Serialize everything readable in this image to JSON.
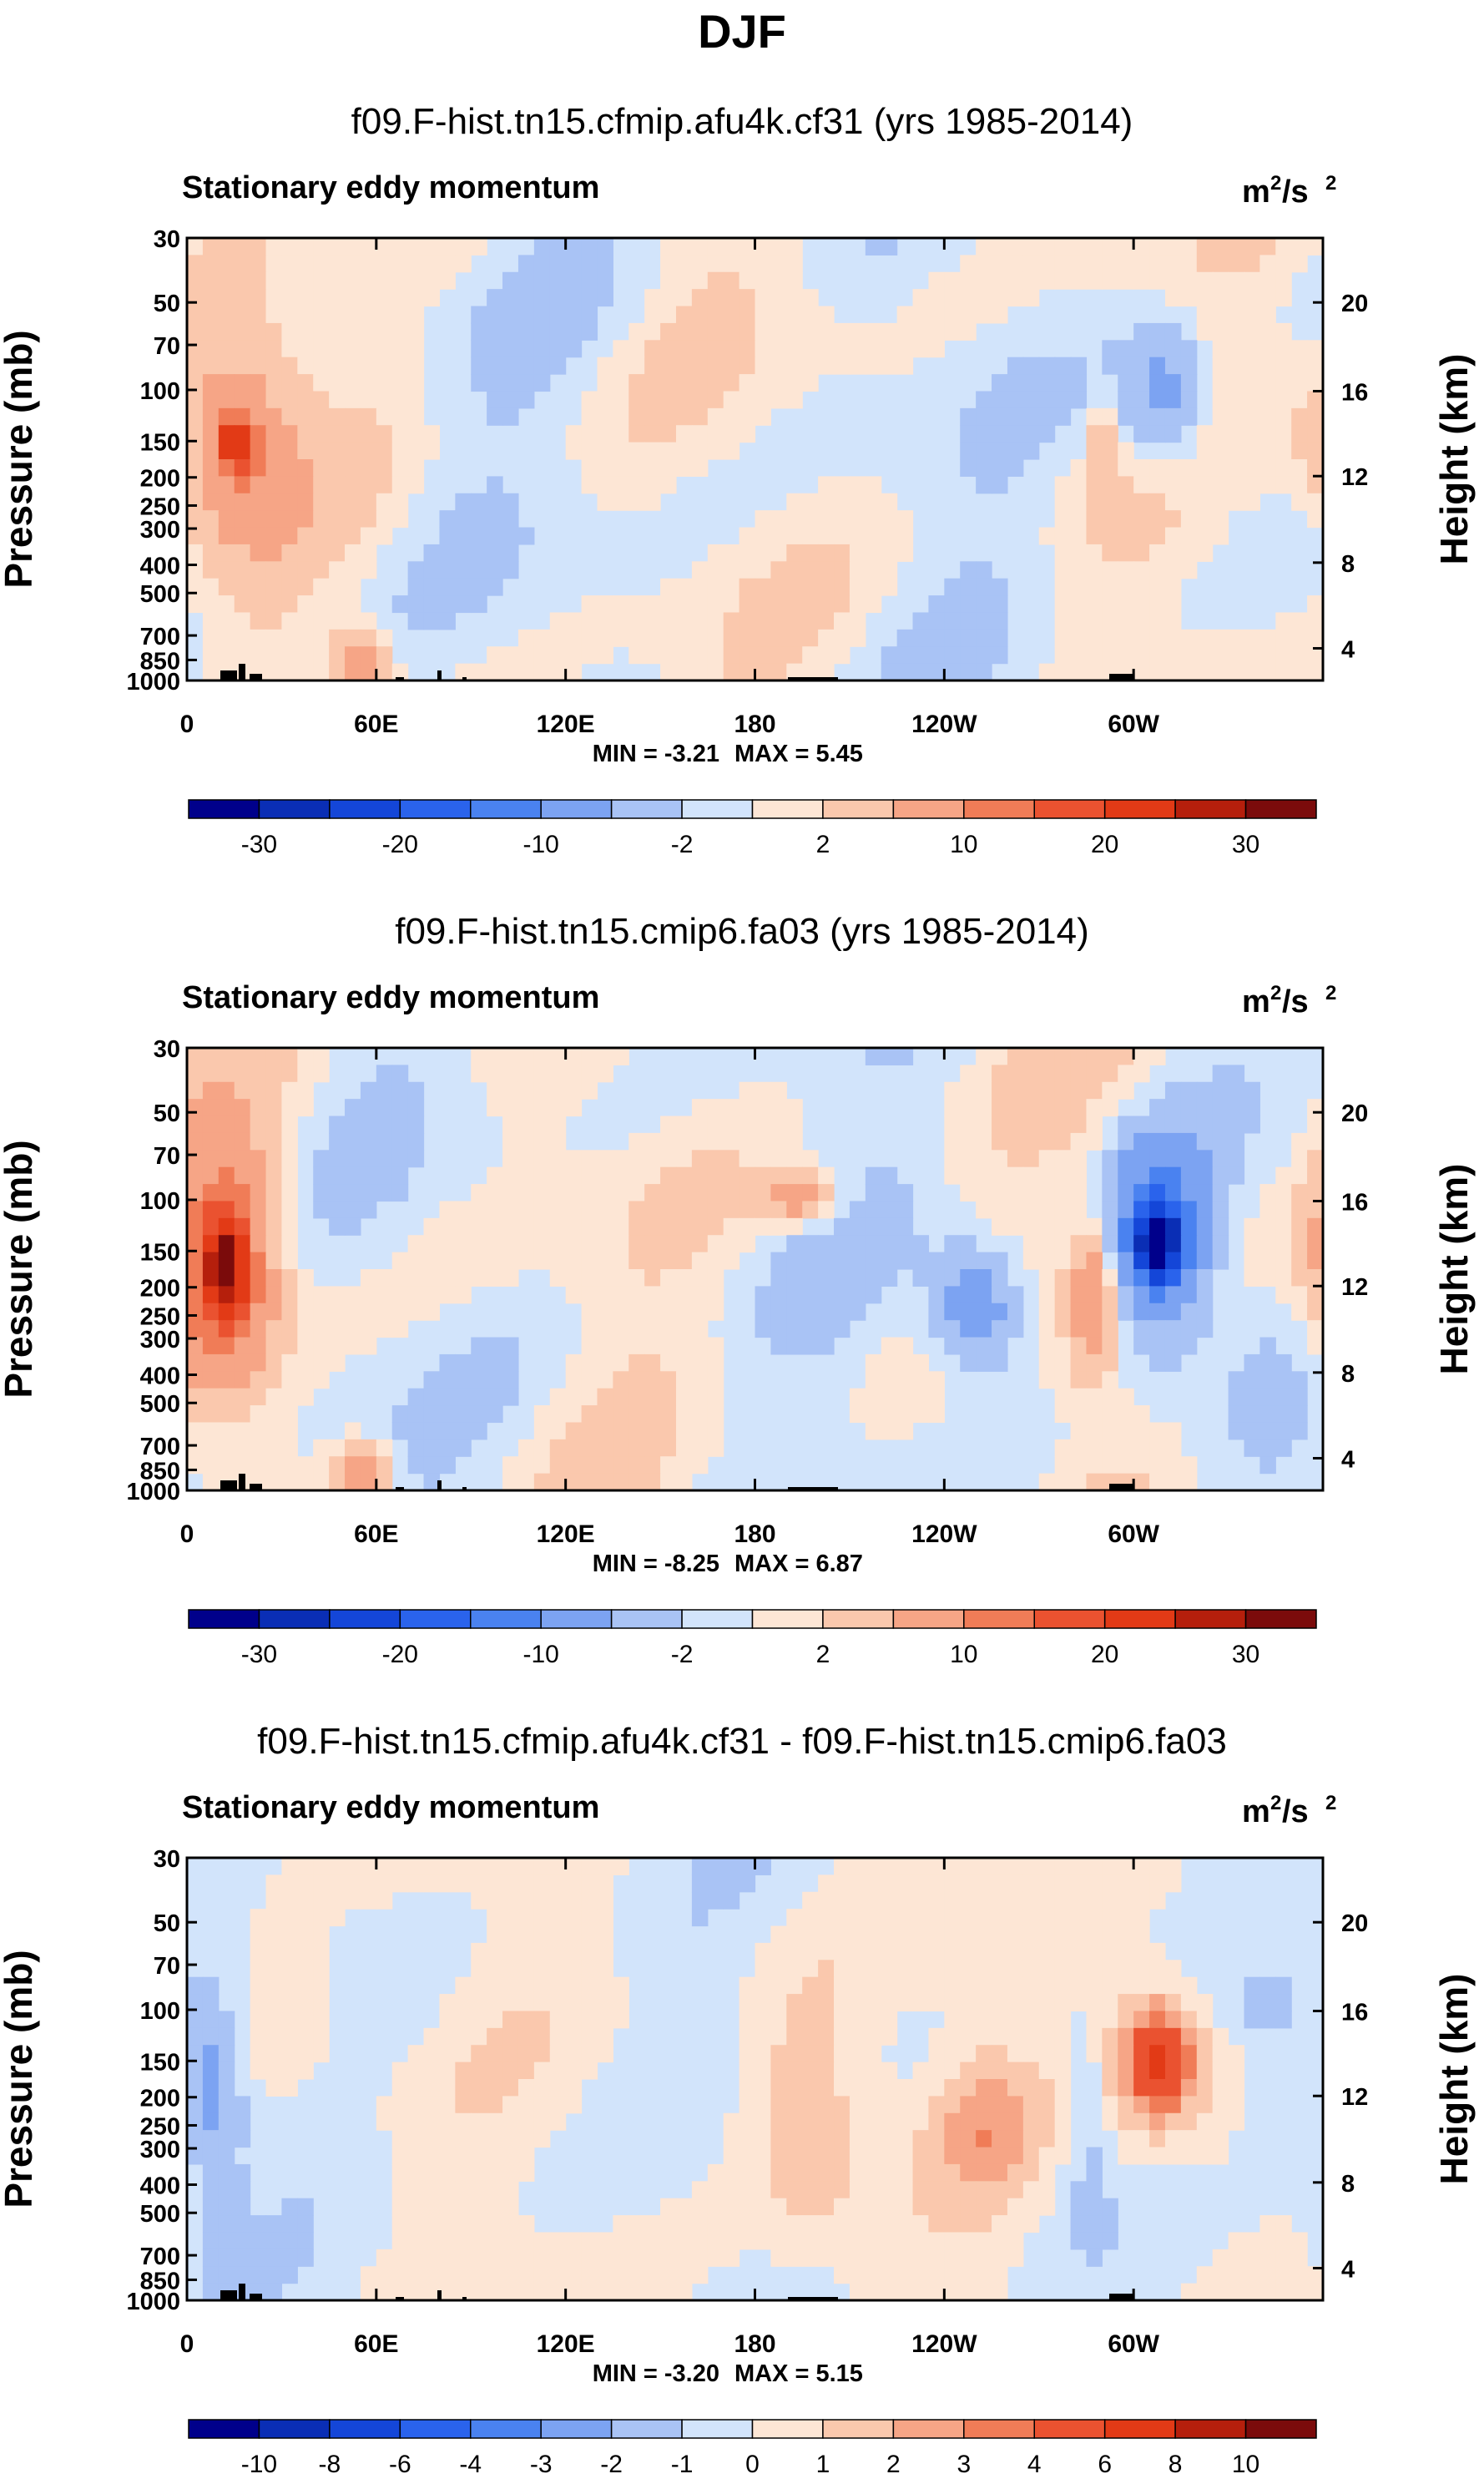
{
  "figure_title": "DJF",
  "colors": {
    "ramp16": [
      "#00008b",
      "#0a2eb5",
      "#1446d8",
      "#2a63ec",
      "#4a82f0",
      "#7ca3f2",
      "#a9c3f5",
      "#d2e4fb",
      "#fde6d5",
      "#fac8ad",
      "#f6a586",
      "#f07c57",
      "#ea5230",
      "#e23a16",
      "#b51f0c",
      "#7b0b0b"
    ],
    "light_blue": "#d2e4fb",
    "light_orange": "#fde6d5",
    "terrain": "#000000"
  },
  "chart_data": [
    {
      "type": "heatmap",
      "title": "f09.F-hist.tn15.cfmip.afu4k.cf31 (yrs 1985-2014)",
      "subtitle": "Stationary eddy momentum",
      "units_base": "m",
      "units_exp1": "2",
      "units_mid": "/s",
      "units_exp2": "2",
      "ylabel": "Pressure (mb)",
      "ylabel_right": "Height (km)",
      "x_ticks": [
        "0",
        "60E",
        "120E",
        "180",
        "120W",
        "60W"
      ],
      "x_tick_values": [
        0,
        60,
        120,
        180,
        240,
        300
      ],
      "xlim": [
        0,
        360
      ],
      "y_ticks": [
        "30",
        "50",
        "70",
        "100",
        "150",
        "200",
        "250",
        "300",
        "400",
        "500",
        "700",
        "850",
        "1000"
      ],
      "ylim": [
        30,
        1000
      ],
      "height_ticks": [
        "20",
        "16",
        "12",
        "8",
        "4"
      ],
      "min_label": "MIN =  -3.21",
      "max_label": "MAX =   5.45",
      "min": -3.21,
      "max": 5.45,
      "colorbar_levels": [
        "-30",
        "-20",
        "-10",
        "-2",
        "2",
        "10",
        "20",
        "30"
      ],
      "blobs": [
        {
          "lon": 15,
          "p": 150,
          "w": 14,
          "h": 0.16,
          "v": 3
        },
        {
          "lon": 15,
          "p": 150,
          "w": 4,
          "h": 0.05,
          "v": 5
        },
        {
          "lon": 310,
          "p": 110,
          "w": 10,
          "h": 0.12,
          "v": -2.5
        },
        {
          "lon": 290,
          "p": 160,
          "w": 2,
          "h": 0.08,
          "v": 2.5
        },
        {
          "lon": 55,
          "p": 880,
          "w": 6,
          "h": 0.05,
          "v": 3
        }
      ]
    },
    {
      "type": "heatmap",
      "title": "f09.F-hist.tn15.cmip6.fa03 (yrs 1985-2014)",
      "subtitle": "Stationary eddy momentum",
      "units_base": "m",
      "units_exp1": "2",
      "units_mid": "/s",
      "units_exp2": "2",
      "ylabel": "Pressure (mb)",
      "ylabel_right": "Height (km)",
      "x_ticks": [
        "0",
        "60E",
        "120E",
        "180",
        "120W",
        "60W"
      ],
      "x_tick_values": [
        0,
        60,
        120,
        180,
        240,
        300
      ],
      "xlim": [
        0,
        360
      ],
      "y_ticks": [
        "30",
        "50",
        "70",
        "100",
        "150",
        "200",
        "250",
        "300",
        "400",
        "500",
        "700",
        "850",
        "1000"
      ],
      "ylim": [
        30,
        1000
      ],
      "height_ticks": [
        "20",
        "16",
        "12",
        "8",
        "4"
      ],
      "min_label": "MIN =  -8.25",
      "max_label": "MAX =   6.87",
      "min": -8.25,
      "max": 6.87,
      "colorbar_levels": [
        "-30",
        "-20",
        "-10",
        "-2",
        "2",
        "10",
        "20",
        "30"
      ],
      "blobs": [
        {
          "lon": 12,
          "p": 170,
          "w": 12,
          "h": 0.2,
          "v": 4
        },
        {
          "lon": 12,
          "p": 170,
          "w": 5,
          "h": 0.08,
          "v": 7
        },
        {
          "lon": 308,
          "p": 140,
          "w": 12,
          "h": 0.16,
          "v": -4
        },
        {
          "lon": 308,
          "p": 140,
          "w": 5,
          "h": 0.06,
          "v": -8
        },
        {
          "lon": 250,
          "p": 240,
          "w": 10,
          "h": 0.1,
          "v": -3
        },
        {
          "lon": 287,
          "p": 220,
          "w": 5,
          "h": 0.12,
          "v": 3
        },
        {
          "lon": 195,
          "p": 100,
          "w": 8,
          "h": 0.04,
          "v": 2.5
        },
        {
          "lon": 55,
          "p": 880,
          "w": 6,
          "h": 0.05,
          "v": 3
        }
      ]
    },
    {
      "type": "heatmap",
      "title": "f09.F-hist.tn15.cfmip.afu4k.cf31 - f09.F-hist.tn15.cmip6.fa03",
      "subtitle": "Stationary eddy momentum",
      "units_base": "m",
      "units_exp1": "2",
      "units_mid": "/s",
      "units_exp2": "2",
      "ylabel": "Pressure (mb)",
      "ylabel_right": "Height (km)",
      "x_ticks": [
        "0",
        "60E",
        "120E",
        "180",
        "120W",
        "60W"
      ],
      "x_tick_values": [
        0,
        60,
        120,
        180,
        240,
        300
      ],
      "xlim": [
        0,
        360
      ],
      "y_ticks": [
        "30",
        "50",
        "70",
        "100",
        "150",
        "200",
        "250",
        "300",
        "400",
        "500",
        "700",
        "850",
        "1000"
      ],
      "ylim": [
        30,
        1000
      ],
      "height_ticks": [
        "20",
        "16",
        "12",
        "8",
        "4"
      ],
      "min_label": "MIN =  -3.20",
      "max_label": "MAX =   5.15",
      "min": -3.2,
      "max": 5.15,
      "colorbar_levels": [
        "-10",
        "-8",
        "-6",
        "-4",
        "-3",
        "-2",
        "-1",
        "0",
        "1",
        "2",
        "3",
        "4",
        "6",
        "8",
        "10"
      ],
      "blobs": [
        {
          "lon": 308,
          "p": 150,
          "w": 14,
          "h": 0.15,
          "v": 3
        },
        {
          "lon": 308,
          "p": 150,
          "w": 6,
          "h": 0.07,
          "v": 5
        },
        {
          "lon": 8,
          "p": 200,
          "w": 8,
          "h": 0.2,
          "v": -2.5
        },
        {
          "lon": 197,
          "p": 250,
          "w": 14,
          "h": 0.2,
          "v": 2
        },
        {
          "lon": 253,
          "p": 250,
          "w": 12,
          "h": 0.12,
          "v": 2
        },
        {
          "lon": 285,
          "p": 230,
          "w": 5,
          "h": 0.15,
          "v": -1.5
        },
        {
          "lon": 345,
          "p": 100,
          "w": 10,
          "h": 0.06,
          "v": -1.5
        },
        {
          "lon": 345,
          "p": 200,
          "w": 8,
          "h": 0.1,
          "v": -1.2
        },
        {
          "lon": 30,
          "p": 110,
          "w": 14,
          "h": 0.1,
          "v": 1.5
        }
      ]
    }
  ]
}
